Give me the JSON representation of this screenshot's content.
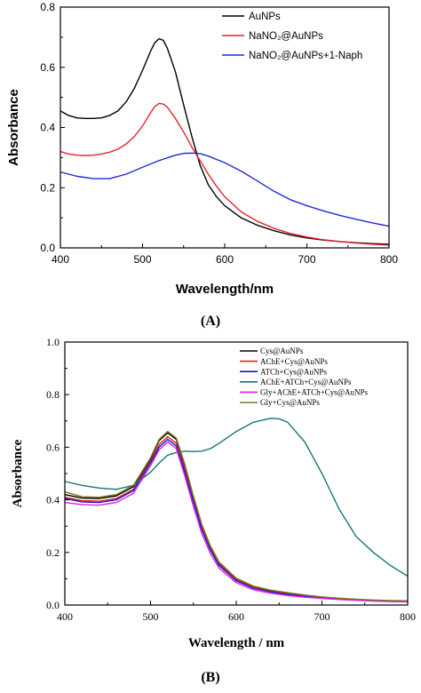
{
  "chart_data": [
    {
      "type": "line",
      "panel_label": "(A)",
      "xlabel": "Wavelength/nm",
      "ylabel": "Absorbance",
      "xlim": [
        400,
        800
      ],
      "ylim": [
        0,
        0.8
      ],
      "xticks": [
        400,
        500,
        600,
        700,
        800
      ],
      "yticks": [
        0.0,
        0.2,
        0.4,
        0.6,
        0.8
      ],
      "grid": false,
      "legend_position": "top-right",
      "series": [
        {
          "name": "AuNPs",
          "color": "#000000",
          "points": [
            [
              400,
              0.455
            ],
            [
              410,
              0.44
            ],
            [
              420,
              0.432
            ],
            [
              430,
              0.43
            ],
            [
              440,
              0.43
            ],
            [
              450,
              0.432
            ],
            [
              460,
              0.44
            ],
            [
              470,
              0.455
            ],
            [
              480,
              0.485
            ],
            [
              490,
              0.53
            ],
            [
              500,
              0.59
            ],
            [
              510,
              0.655
            ],
            [
              515,
              0.682
            ],
            [
              520,
              0.695
            ],
            [
              525,
              0.69
            ],
            [
              530,
              0.665
            ],
            [
              540,
              0.585
            ],
            [
              550,
              0.475
            ],
            [
              560,
              0.37
            ],
            [
              570,
              0.275
            ],
            [
              580,
              0.21
            ],
            [
              590,
              0.17
            ],
            [
              600,
              0.14
            ],
            [
              620,
              0.1
            ],
            [
              640,
              0.075
            ],
            [
              660,
              0.057
            ],
            [
              680,
              0.043
            ],
            [
              700,
              0.033
            ],
            [
              720,
              0.026
            ],
            [
              740,
              0.021
            ],
            [
              760,
              0.017
            ],
            [
              780,
              0.014
            ],
            [
              800,
              0.012
            ]
          ]
        },
        {
          "name": "NaNO₂@AuNPs",
          "color": "#e4242b",
          "points": [
            [
              400,
              0.32
            ],
            [
              410,
              0.312
            ],
            [
              420,
              0.308
            ],
            [
              430,
              0.307
            ],
            [
              440,
              0.308
            ],
            [
              450,
              0.312
            ],
            [
              460,
              0.318
            ],
            [
              470,
              0.328
            ],
            [
              480,
              0.345
            ],
            [
              490,
              0.37
            ],
            [
              500,
              0.405
            ],
            [
              510,
              0.45
            ],
            [
              515,
              0.47
            ],
            [
              520,
              0.48
            ],
            [
              525,
              0.478
            ],
            [
              530,
              0.468
            ],
            [
              540,
              0.43
            ],
            [
              550,
              0.385
            ],
            [
              560,
              0.335
            ],
            [
              570,
              0.29
            ],
            [
              580,
              0.245
            ],
            [
              590,
              0.205
            ],
            [
              600,
              0.17
            ],
            [
              620,
              0.12
            ],
            [
              640,
              0.088
            ],
            [
              660,
              0.065
            ],
            [
              680,
              0.048
            ],
            [
              700,
              0.036
            ],
            [
              720,
              0.027
            ],
            [
              740,
              0.021
            ],
            [
              760,
              0.016
            ],
            [
              780,
              0.012
            ],
            [
              800,
              0.009
            ]
          ]
        },
        {
          "name": "NaNO₂@AuNPs+1-Naph",
          "color": "#1f2bd6",
          "points": [
            [
              400,
              0.252
            ],
            [
              420,
              0.238
            ],
            [
              440,
              0.23
            ],
            [
              460,
              0.23
            ],
            [
              480,
              0.245
            ],
            [
              500,
              0.268
            ],
            [
              520,
              0.29
            ],
            [
              540,
              0.308
            ],
            [
              550,
              0.314
            ],
            [
              560,
              0.315
            ],
            [
              570,
              0.313
            ],
            [
              580,
              0.305
            ],
            [
              600,
              0.283
            ],
            [
              620,
              0.255
            ],
            [
              640,
              0.222
            ],
            [
              660,
              0.188
            ],
            [
              680,
              0.16
            ],
            [
              700,
              0.14
            ],
            [
              720,
              0.123
            ],
            [
              740,
              0.108
            ],
            [
              760,
              0.095
            ],
            [
              780,
              0.083
            ],
            [
              800,
              0.072
            ]
          ]
        }
      ]
    },
    {
      "type": "line",
      "panel_label": "(B)",
      "xlabel": "Wavelength / nm",
      "ylabel": "Absorbance",
      "xlim": [
        400,
        800
      ],
      "ylim": [
        0,
        1.0
      ],
      "xticks": [
        400,
        500,
        600,
        700,
        800
      ],
      "yticks": [
        0.0,
        0.2,
        0.4,
        0.6,
        0.8,
        1.0
      ],
      "grid": false,
      "legend_position": "top-right",
      "series": [
        {
          "name": "Cys@AuNPs",
          "color": "#000000",
          "points": [
            [
              400,
              0.42
            ],
            [
              420,
              0.407
            ],
            [
              440,
              0.405
            ],
            [
              460,
              0.415
            ],
            [
              480,
              0.45
            ],
            [
              500,
              0.555
            ],
            [
              510,
              0.625
            ],
            [
              520,
              0.655
            ],
            [
              530,
              0.63
            ],
            [
              540,
              0.53
            ],
            [
              550,
              0.41
            ],
            [
              560,
              0.3
            ],
            [
              570,
              0.22
            ],
            [
              580,
              0.16
            ],
            [
              600,
              0.1
            ],
            [
              620,
              0.07
            ],
            [
              640,
              0.055
            ],
            [
              660,
              0.045
            ],
            [
              680,
              0.037
            ],
            [
              700,
              0.03
            ],
            [
              720,
              0.025
            ],
            [
              740,
              0.021
            ],
            [
              760,
              0.018
            ],
            [
              780,
              0.016
            ],
            [
              800,
              0.015
            ]
          ]
        },
        {
          "name": "AChE+Cys@AuNPs",
          "color": "#e02020",
          "points": [
            [
              400,
              0.41
            ],
            [
              420,
              0.397
            ],
            [
              440,
              0.395
            ],
            [
              460,
              0.405
            ],
            [
              480,
              0.44
            ],
            [
              500,
              0.545
            ],
            [
              510,
              0.61
            ],
            [
              520,
              0.64
            ],
            [
              530,
              0.615
            ],
            [
              540,
              0.515
            ],
            [
              550,
              0.4
            ],
            [
              560,
              0.292
            ],
            [
              570,
              0.214
            ],
            [
              580,
              0.155
            ],
            [
              600,
              0.096
            ],
            [
              620,
              0.067
            ],
            [
              640,
              0.052
            ],
            [
              660,
              0.042
            ],
            [
              680,
              0.034
            ],
            [
              700,
              0.028
            ],
            [
              720,
              0.023
            ],
            [
              740,
              0.02
            ],
            [
              760,
              0.017
            ],
            [
              780,
              0.015
            ],
            [
              800,
              0.014
            ]
          ]
        },
        {
          "name": "ATCh+Cys@AuNPs",
          "color": "#1a1acc",
          "points": [
            [
              400,
              0.405
            ],
            [
              420,
              0.392
            ],
            [
              440,
              0.39
            ],
            [
              460,
              0.4
            ],
            [
              480,
              0.435
            ],
            [
              500,
              0.54
            ],
            [
              510,
              0.6
            ],
            [
              520,
              0.63
            ],
            [
              530,
              0.605
            ],
            [
              540,
              0.505
            ],
            [
              550,
              0.392
            ],
            [
              560,
              0.285
            ],
            [
              570,
              0.208
            ],
            [
              580,
              0.15
            ],
            [
              600,
              0.092
            ],
            [
              620,
              0.064
            ],
            [
              640,
              0.05
            ],
            [
              660,
              0.04
            ],
            [
              680,
              0.033
            ],
            [
              700,
              0.027
            ],
            [
              720,
              0.022
            ],
            [
              740,
              0.019
            ],
            [
              760,
              0.016
            ],
            [
              780,
              0.014
            ],
            [
              800,
              0.013
            ]
          ]
        },
        {
          "name": "AChE+ATCh+Cys@AuNPs",
          "color": "#137777",
          "points": [
            [
              400,
              0.47
            ],
            [
              420,
              0.455
            ],
            [
              440,
              0.445
            ],
            [
              460,
              0.44
            ],
            [
              480,
              0.455
            ],
            [
              500,
              0.505
            ],
            [
              510,
              0.54
            ],
            [
              520,
              0.57
            ],
            [
              530,
              0.58
            ],
            [
              540,
              0.585
            ],
            [
              550,
              0.584
            ],
            [
              560,
              0.585
            ],
            [
              570,
              0.595
            ],
            [
              580,
              0.615
            ],
            [
              600,
              0.66
            ],
            [
              620,
              0.695
            ],
            [
              640,
              0.71
            ],
            [
              650,
              0.708
            ],
            [
              660,
              0.695
            ],
            [
              680,
              0.62
            ],
            [
              700,
              0.5
            ],
            [
              720,
              0.365
            ],
            [
              740,
              0.26
            ],
            [
              760,
              0.2
            ],
            [
              780,
              0.15
            ],
            [
              800,
              0.11
            ]
          ]
        },
        {
          "name": "Gly+AChE+ATCh+Cys@AuNPs",
          "color": "#e020e0",
          "points": [
            [
              400,
              0.39
            ],
            [
              420,
              0.382
            ],
            [
              440,
              0.38
            ],
            [
              460,
              0.39
            ],
            [
              480,
              0.425
            ],
            [
              500,
              0.53
            ],
            [
              510,
              0.59
            ],
            [
              520,
              0.62
            ],
            [
              530,
              0.595
            ],
            [
              540,
              0.49
            ],
            [
              550,
              0.375
            ],
            [
              560,
              0.27
            ],
            [
              570,
              0.195
            ],
            [
              580,
              0.14
            ],
            [
              600,
              0.085
            ],
            [
              620,
              0.058
            ],
            [
              640,
              0.045
            ],
            [
              660,
              0.036
            ],
            [
              680,
              0.03
            ],
            [
              700,
              0.025
            ],
            [
              720,
              0.021
            ],
            [
              740,
              0.018
            ],
            [
              760,
              0.015
            ],
            [
              780,
              0.013
            ],
            [
              800,
              0.012
            ]
          ]
        },
        {
          "name": "Gly+Cys@AuNPs",
          "color": "#7a7a22",
          "points": [
            [
              400,
              0.43
            ],
            [
              420,
              0.412
            ],
            [
              440,
              0.41
            ],
            [
              460,
              0.42
            ],
            [
              480,
              0.455
            ],
            [
              500,
              0.56
            ],
            [
              510,
              0.63
            ],
            [
              520,
              0.66
            ],
            [
              530,
              0.635
            ],
            [
              540,
              0.535
            ],
            [
              550,
              0.415
            ],
            [
              560,
              0.305
            ],
            [
              570,
              0.224
            ],
            [
              580,
              0.163
            ],
            [
              600,
              0.102
            ],
            [
              620,
              0.072
            ],
            [
              640,
              0.057
            ],
            [
              660,
              0.047
            ],
            [
              680,
              0.038
            ],
            [
              700,
              0.031
            ],
            [
              720,
              0.026
            ],
            [
              740,
              0.022
            ],
            [
              760,
              0.019
            ],
            [
              780,
              0.017
            ],
            [
              800,
              0.016
            ]
          ]
        }
      ]
    }
  ]
}
